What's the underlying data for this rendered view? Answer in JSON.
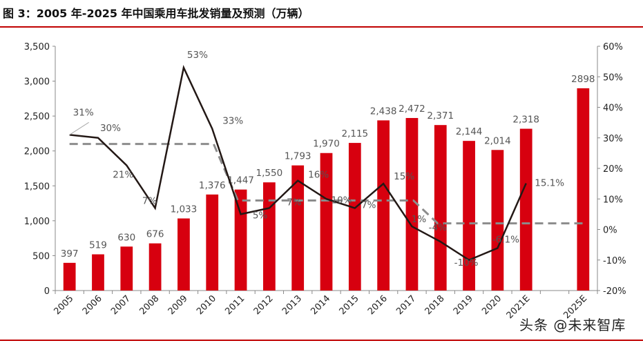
{
  "title": "图 3：2005 年-2025 年中国乘用车批发销量及预测（万辆）",
  "watermark": "头条 @未来智库",
  "chart_data": {
    "type": "bar+line",
    "categories": [
      "2005",
      "2006",
      "2007",
      "2008",
      "2009",
      "2010",
      "2011",
      "2012",
      "2013",
      "2014",
      "2015",
      "2016",
      "2017",
      "2018",
      "2019",
      "2020",
      "2021E",
      "",
      "2025E"
    ],
    "bars": {
      "values": [
        397,
        519,
        630,
        676,
        1033,
        1376,
        1447,
        1550,
        1793,
        1970,
        2115,
        2438,
        2472,
        2371,
        2144,
        2014,
        2318,
        null,
        2898
      ],
      "labels": [
        "397",
        "519",
        "630",
        "676",
        "1,033",
        "1,376",
        "1,447",
        "1,550",
        "1,793",
        "1,970",
        "2,115",
        "2,438",
        "2,472",
        "2,371",
        "2,144",
        "2,014",
        "2,318",
        "",
        "2898"
      ],
      "color": "#d7000f"
    },
    "growth_line": {
      "values": [
        31,
        30,
        21,
        7,
        53,
        33,
        5,
        7,
        16,
        10,
        7,
        15,
        1,
        -4,
        -10,
        -6.1,
        15.1
      ],
      "labels": [
        "31%",
        "30%",
        "21%",
        "7%",
        "53%",
        "33%",
        "5%",
        "7%",
        "16%",
        "10%",
        "7%",
        "15%",
        "1%",
        "-4%",
        "-10%",
        "-6.1%",
        "15.1%"
      ],
      "color": "#231815"
    },
    "cagr_dashed": {
      "segments": [
        {
          "from": "2005",
          "to": "2010",
          "value": 28
        },
        {
          "from": "2011",
          "to": "2017",
          "value": 9.5
        },
        {
          "from": "2018",
          "to": "2025E",
          "value": 2
        }
      ],
      "color": "#8c8c8c"
    },
    "y_left": {
      "ylim": [
        0,
        3500
      ],
      "ticks": [
        "0",
        "500",
        "1,000",
        "1,500",
        "2,000",
        "2,500",
        "3,000",
        "3,500"
      ]
    },
    "y_right": {
      "ylim": [
        -20,
        60
      ],
      "ticks": [
        "-20%",
        "-10%",
        "0%",
        "10%",
        "20%",
        "30%",
        "40%",
        "50%",
        "60%"
      ]
    },
    "grid": false,
    "legend": "none"
  }
}
